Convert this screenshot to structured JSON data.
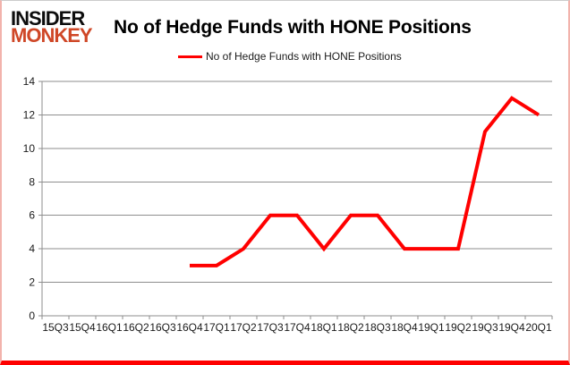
{
  "logo": {
    "line1": "INSIDER",
    "line2": "MONKEY",
    "line1_color": "#0d0d0d",
    "line2_color": "#cf4727"
  },
  "title": "No of Hedge Funds with HONE Positions",
  "legend": {
    "label": "No of Hedge Funds with HONE Positions",
    "line_color": "#ff0000"
  },
  "frame": {
    "bottom_border_color": "#fe0000",
    "axis_color": "#8e8e8e"
  },
  "chart_data": {
    "type": "line",
    "title": "No of Hedge Funds with HONE Positions",
    "categories": [
      "15Q3",
      "15Q4",
      "16Q1",
      "16Q2",
      "16Q3",
      "16Q4",
      "17Q1",
      "17Q2",
      "17Q3",
      "17Q4",
      "18Q1",
      "18Q2",
      "18Q3",
      "18Q4",
      "19Q1",
      "19Q2",
      "19Q3",
      "19Q4",
      "20Q1"
    ],
    "series": [
      {
        "name": "No of Hedge Funds with HONE Positions",
        "color": "#ff0000",
        "values": [
          null,
          null,
          null,
          null,
          null,
          3,
          3,
          4,
          6,
          6,
          4,
          6,
          6,
          4,
          4,
          4,
          11,
          13,
          12
        ]
      }
    ],
    "xlabel": "",
    "ylabel": "",
    "ylim": [
      0,
      14
    ],
    "yticks": [
      0,
      2,
      4,
      6,
      8,
      10,
      12,
      14
    ],
    "grid": true,
    "legend_position": "top"
  }
}
